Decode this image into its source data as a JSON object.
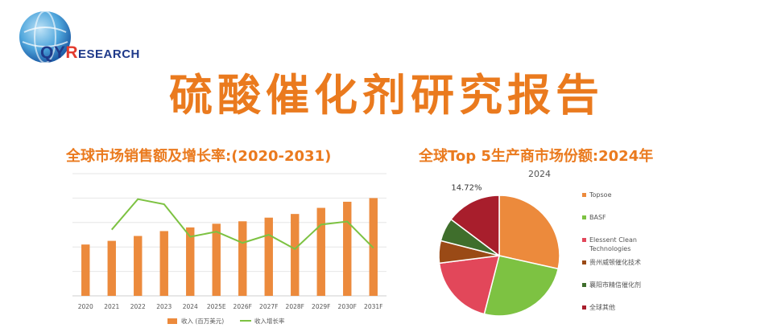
{
  "logo": {
    "qy": "QY",
    "r": "R",
    "rest": "ESEARCH"
  },
  "title": "硫酸催化剂研究报告",
  "left_chart_title": "全球市场销售额及增长率:(2020-2031)",
  "right_chart_title": "全球Top 5生产商市场份额:2024年",
  "colors": {
    "accent": "#ea7a1e",
    "bar": "#ec8a3c",
    "line": "#7dc242"
  },
  "chart_data": [
    {
      "type": "bar",
      "title": "全球市场销售额及增长率:(2020-2031)",
      "categories": [
        "2020",
        "2021",
        "2022",
        "2023",
        "2024",
        "2025E",
        "2026F",
        "2027F",
        "2028F",
        "2029F",
        "2030F",
        "2031F"
      ],
      "series": [
        {
          "name": "收入 (百万美元)",
          "kind": "bar",
          "values": [
            42,
            45,
            49,
            53,
            56,
            59,
            61,
            64,
            67,
            72,
            77,
            80
          ]
        },
        {
          "name": "收入增长率",
          "kind": "line",
          "values": [
            null,
            6.5,
            9.5,
            9.0,
            5.8,
            6.3,
            5.2,
            6.0,
            4.6,
            7.0,
            7.3,
            4.7
          ]
        }
      ],
      "ylim": [
        0,
        100
      ],
      "grid": true,
      "legend": "bottom"
    },
    {
      "type": "pie",
      "title": "全球Top 5生产商市场份额:2024年",
      "subtitle": "2024",
      "labels": [
        "Topsoe",
        "BASF",
        "Elessent Clean Technologies",
        "贵州威顿催化技术",
        "襄阳市精信催化剂",
        "全球其他"
      ],
      "values": [
        28.5,
        25.5,
        19.0,
        6.0,
        6.28,
        14.72
      ],
      "colors": [
        "#ec8a3c",
        "#7dc242",
        "#e2475a",
        "#9a4a16",
        "#3f6e2c",
        "#a81e2c"
      ],
      "data_labels": [
        "",
        "",
        "",
        "",
        "",
        "14.72%"
      ],
      "legend": "right"
    }
  ]
}
